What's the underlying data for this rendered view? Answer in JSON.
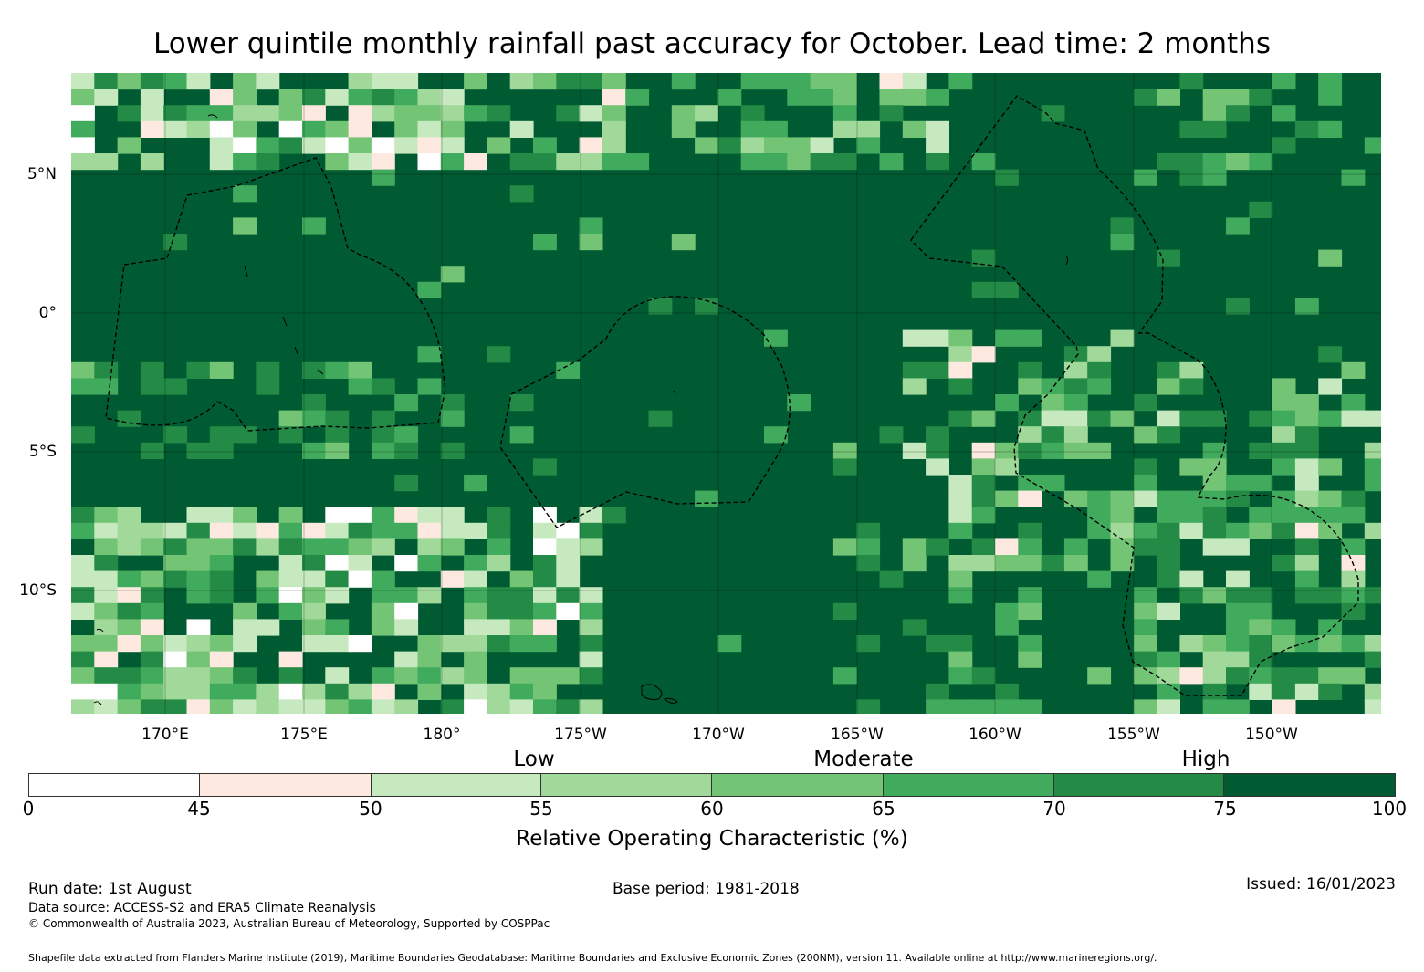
{
  "title": "Lower quintile monthly rainfall past accuracy for October. Lead time: 2 months",
  "map": {
    "lat_labels": [
      "5°N",
      "0°",
      "5°S",
      "10°S"
    ],
    "lon_labels": [
      "170°E",
      "175°E",
      "180°",
      "175°W",
      "170°W",
      "165°W",
      "160°W",
      "155°W",
      "150°W"
    ]
  },
  "legend": {
    "categories": [
      "Low",
      "Moderate",
      "High"
    ],
    "ticks": [
      "0",
      "45",
      "50",
      "55",
      "60",
      "65",
      "70",
      "75",
      "100"
    ],
    "colors": [
      "#ffffff",
      "#fee9e0",
      "#c7e9c0",
      "#a1d99b",
      "#74c476",
      "#41ab5d",
      "#238b45",
      "#005a32"
    ],
    "label": "Relative Operating Characteristic (%)"
  },
  "footer": {
    "run_date": "Run date: 1st August",
    "base_period": "Base period: 1981-2018",
    "issued": "Issued: 16/01/2023",
    "data_source": "Data source: ACCESS-S2 and ERA5 Climate Reanalysis",
    "copyright": "© Commonwealth of Australia 2023, Australian Bureau of Meteorology, Supported by COSPPac",
    "shapefile": "Shapefile data extracted from Flanders Marine Institute (2019), Maritime Boundaries Geodatabase: Maritime Boundaries and Exclusive Economic Zones (200NM), version 11. Available online at http://www.marineregions.org/."
  }
}
